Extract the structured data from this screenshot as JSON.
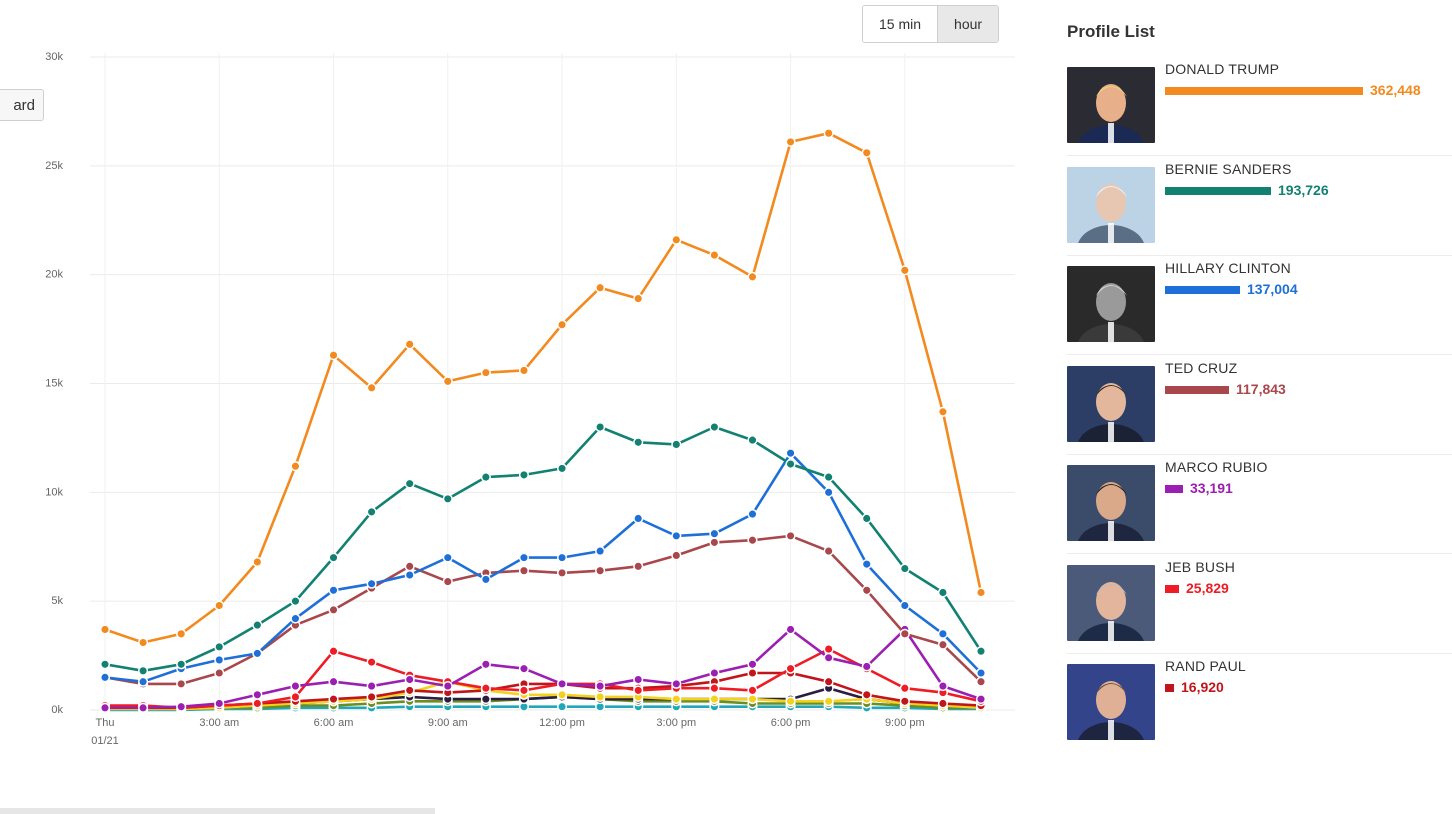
{
  "toolbar": {
    "interval_15min": "15 min",
    "interval_hour": "hour",
    "side_button": "ard"
  },
  "panel": {
    "title": "Profile List"
  },
  "profiles": [
    {
      "name": "DONALD TRUMP",
      "value": "362,448",
      "count": 362448,
      "color": "#f28a1f",
      "photo": "trump"
    },
    {
      "name": "BERNIE SANDERS",
      "value": "193,726",
      "count": 193726,
      "color": "#128172",
      "photo": "sanders"
    },
    {
      "name": "HILLARY CLINTON",
      "value": "137,004",
      "count": 137004,
      "color": "#1e6fd8",
      "photo": "clinton"
    },
    {
      "name": "TED CRUZ",
      "value": "117,843",
      "count": 117843,
      "color": "#a8474c",
      "photo": "cruz"
    },
    {
      "name": "MARCO RUBIO",
      "value": "33,191",
      "count": 33191,
      "color": "#9b1fb0",
      "photo": "rubio"
    },
    {
      "name": "JEB BUSH",
      "value": "25,829",
      "count": 25829,
      "color": "#ee1c24",
      "photo": "bush"
    },
    {
      "name": "RAND PAUL",
      "value": "16,920",
      "count": 16920,
      "color": "#c0161b",
      "photo": "paul"
    }
  ],
  "chart_data": {
    "type": "line",
    "title": "",
    "xlabel": "",
    "ylabel": "",
    "ylim": [
      0,
      30000
    ],
    "y_ticks": [
      0,
      5000,
      10000,
      15000,
      20000,
      25000,
      30000
    ],
    "y_tick_labels": [
      "0k",
      "5k",
      "10k",
      "15k",
      "20k",
      "25k",
      "30k"
    ],
    "x_hours": [
      0,
      1,
      2,
      3,
      4,
      5,
      6,
      7,
      8,
      9,
      10,
      11,
      12,
      13,
      14,
      15,
      16,
      17,
      18,
      19,
      20,
      21,
      22,
      23
    ],
    "x_tick_labels": [
      {
        "hour": 0,
        "line1": "Thu",
        "line2": "01/21"
      },
      {
        "hour": 3,
        "line1": "3:00 am"
      },
      {
        "hour": 6,
        "line1": "6:00 am"
      },
      {
        "hour": 9,
        "line1": "9:00 am"
      },
      {
        "hour": 12,
        "line1": "12:00 pm"
      },
      {
        "hour": 15,
        "line1": "3:00 pm"
      },
      {
        "hour": 18,
        "line1": "6:00 pm"
      },
      {
        "hour": 21,
        "line1": "9:00 pm"
      }
    ],
    "grid": true,
    "series": [
      {
        "name": "DONALD TRUMP",
        "color": "#f28a1f",
        "values": [
          3700,
          3100,
          3500,
          4800,
          6800,
          11200,
          16300,
          14800,
          16800,
          15100,
          15500,
          15600,
          17700,
          19400,
          18900,
          21600,
          20900,
          19900,
          26100,
          26500,
          25600,
          20200,
          13700,
          5400
        ]
      },
      {
        "name": "BERNIE SANDERS",
        "color": "#128172",
        "values": [
          2100,
          1800,
          2100,
          2900,
          3900,
          5000,
          7000,
          9100,
          10400,
          9700,
          10700,
          10800,
          11100,
          13000,
          12300,
          12200,
          13000,
          12400,
          11300,
          10700,
          8800,
          6500,
          5400,
          2700
        ]
      },
      {
        "name": "HILLARY CLINTON",
        "color": "#1e6fd8",
        "values": [
          1500,
          1300,
          1900,
          2300,
          2600,
          4200,
          5500,
          5800,
          6200,
          7000,
          6000,
          7000,
          7000,
          7300,
          8800,
          8000,
          8100,
          9000,
          11800,
          10000,
          6700,
          4800,
          3500,
          1700
        ]
      },
      {
        "name": "TED CRUZ",
        "color": "#a8474c",
        "values": [
          1500,
          1200,
          1200,
          1700,
          2600,
          3900,
          4600,
          5600,
          6600,
          5900,
          6300,
          6400,
          6300,
          6400,
          6600,
          7100,
          7700,
          7800,
          8000,
          7300,
          5500,
          3500,
          3000,
          1300
        ]
      },
      {
        "name": "MARCO RUBIO",
        "color": "#9b1fb0",
        "values": [
          100,
          100,
          150,
          300,
          700,
          1100,
          1300,
          1100,
          1400,
          1100,
          2100,
          1900,
          1200,
          1100,
          1400,
          1200,
          1700,
          2100,
          3700,
          2400,
          2000,
          3700,
          1100,
          500
        ]
      },
      {
        "name": "JEB BUSH",
        "color": "#ee1c24",
        "values": [
          200,
          200,
          100,
          200,
          300,
          600,
          2700,
          2200,
          1600,
          1300,
          1000,
          900,
          1200,
          1200,
          900,
          1000,
          1000,
          900,
          1900,
          2800,
          1900,
          1000,
          800,
          400
        ]
      },
      {
        "name": "RAND PAUL",
        "color": "#c0161b",
        "values": [
          150,
          100,
          100,
          200,
          300,
          400,
          500,
          600,
          900,
          800,
          900,
          1200,
          1200,
          1000,
          1000,
          1100,
          1300,
          1700,
          1700,
          1300,
          700,
          400,
          300,
          200
        ]
      },
      {
        "name": "",
        "color": "#f2d21c",
        "values": [
          50,
          50,
          50,
          100,
          200,
          300,
          400,
          500,
          800,
          1300,
          900,
          700,
          700,
          600,
          600,
          500,
          500,
          500,
          400,
          400,
          500,
          300,
          200,
          100
        ]
      },
      {
        "name": "",
        "color": "#2a1d3f",
        "values": [
          100,
          100,
          100,
          100,
          200,
          300,
          400,
          500,
          600,
          500,
          500,
          500,
          600,
          500,
          500,
          500,
          500,
          500,
          500,
          1000,
          500,
          300,
          200,
          100
        ]
      },
      {
        "name": "",
        "color": "#6b8e23",
        "values": [
          50,
          50,
          50,
          100,
          100,
          200,
          200,
          300,
          400,
          400,
          400,
          500,
          600,
          500,
          400,
          400,
          400,
          300,
          300,
          300,
          300,
          200,
          100,
          100
        ]
      },
      {
        "name": "",
        "color": "#1fa9b8",
        "values": [
          0,
          0,
          0,
          50,
          50,
          100,
          100,
          100,
          150,
          150,
          150,
          150,
          150,
          150,
          150,
          150,
          150,
          150,
          150,
          150,
          100,
          100,
          50,
          50
        ]
      }
    ]
  }
}
